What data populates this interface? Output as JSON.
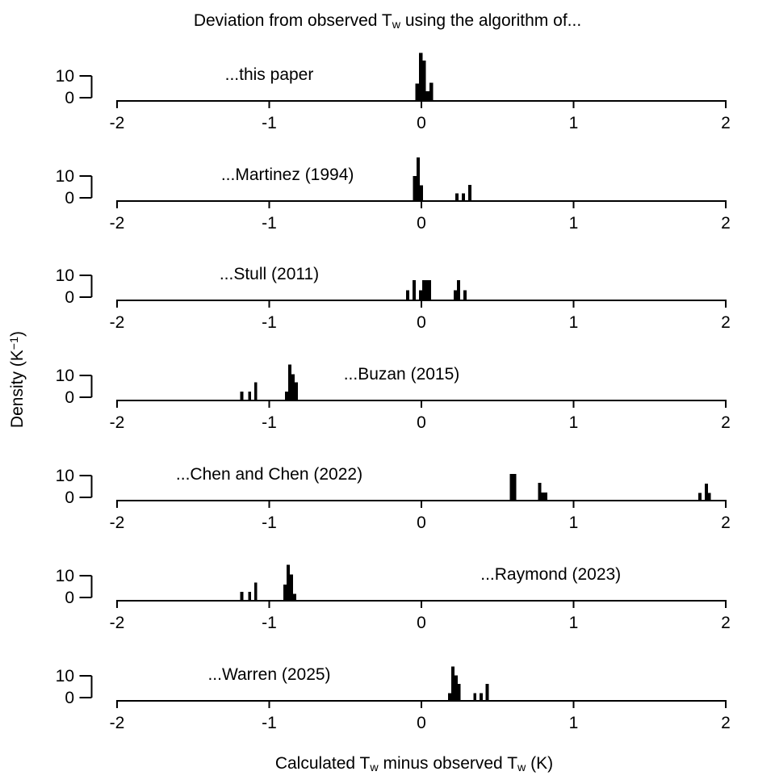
{
  "text": {
    "title_segments": [
      {
        "text": "Deviation from observed T"
      },
      {
        "text": "w",
        "sub": true
      },
      {
        "text": " using the algorithm of..."
      }
    ],
    "xlabel_segments": [
      {
        "text": "Calculated T"
      },
      {
        "text": "w",
        "sub": true
      },
      {
        "text": " minus observed T"
      },
      {
        "text": "w",
        "sub": true
      },
      {
        "text": " (K)"
      }
    ],
    "ylabel_segments": [
      {
        "text": "Density (K"
      },
      {
        "text": "−1",
        "sup": true
      },
      {
        "text": ")"
      }
    ]
  },
  "colors": {
    "bar_fill": "#000000",
    "axis": "#000000",
    "background": "#ffffff"
  },
  "chart_data": {
    "type": "bar",
    "subtype": "histogram-small-multiples",
    "title": "Deviation from observed Tw using the algorithm of...",
    "xlabel": "Calculated Tw minus observed Tw (K)",
    "ylabel": "Density (K-1)",
    "xlim": [
      -2,
      2
    ],
    "x_ticks": [
      -2,
      -1,
      0,
      1,
      2
    ],
    "x_tick_labels": [
      "-2",
      "-1",
      "0",
      "1",
      "2"
    ],
    "y_ticks": [
      0,
      10
    ],
    "y_tick_labels": [
      "0",
      "10"
    ],
    "grid": false,
    "panels": [
      {
        "label": "...this paper",
        "label_x": -1.0,
        "bars": [
          {
            "x": -0.039,
            "w": 0.023,
            "h": 8.0
          },
          {
            "x": -0.016,
            "w": 0.023,
            "h": 22.0
          },
          {
            "x": 0.007,
            "w": 0.023,
            "h": 18.5
          },
          {
            "x": 0.03,
            "w": 0.023,
            "h": 4.5
          },
          {
            "x": 0.053,
            "w": 0.023,
            "h": 8.3
          }
        ]
      },
      {
        "label": "...Martinez (1994)",
        "label_x": -0.88,
        "bars": [
          {
            "x": -0.055,
            "w": 0.023,
            "h": 11.4
          },
          {
            "x": -0.032,
            "w": 0.021,
            "h": 20.0
          },
          {
            "x": -0.011,
            "w": 0.022,
            "h": 7.2
          },
          {
            "x": 0.222,
            "w": 0.021,
            "h": 3.5
          },
          {
            "x": 0.265,
            "w": 0.021,
            "h": 3.5
          },
          {
            "x": 0.307,
            "w": 0.021,
            "h": 7.4
          }
        ]
      },
      {
        "label": "...Stull (2011)",
        "label_x": -1.0,
        "bars": [
          {
            "x": -0.1,
            "w": 0.021,
            "h": 4.7
          },
          {
            "x": -0.058,
            "w": 0.021,
            "h": 9.3
          },
          {
            "x": -0.016,
            "w": 0.02,
            "h": 4.7
          },
          {
            "x": 0.004,
            "w": 0.02,
            "h": 9.3
          },
          {
            "x": 0.024,
            "w": 0.02,
            "h": 9.3
          },
          {
            "x": 0.044,
            "w": 0.02,
            "h": 9.3
          },
          {
            "x": 0.212,
            "w": 0.021,
            "h": 4.7
          },
          {
            "x": 0.233,
            "w": 0.021,
            "h": 9.3
          },
          {
            "x": 0.275,
            "w": 0.021,
            "h": 4.7
          }
        ]
      },
      {
        "label": "...Buzan (2015)",
        "label_x": -0.13,
        "bars": [
          {
            "x": -1.19,
            "w": 0.02,
            "h": 4.0
          },
          {
            "x": -1.139,
            "w": 0.02,
            "h": 4.0
          },
          {
            "x": -1.099,
            "w": 0.02,
            "h": 8.4
          },
          {
            "x": -0.896,
            "w": 0.021,
            "h": 4.0
          },
          {
            "x": -0.875,
            "w": 0.021,
            "h": 16.4
          },
          {
            "x": -0.854,
            "w": 0.021,
            "h": 12.0
          },
          {
            "x": -0.833,
            "w": 0.021,
            "h": 8.4
          }
        ]
      },
      {
        "label": "...Chen and Chen (2022)",
        "label_x": -1.0,
        "bars": [
          {
            "x": 0.58,
            "w": 0.022,
            "h": 12.3
          },
          {
            "x": 0.602,
            "w": 0.022,
            "h": 12.3
          },
          {
            "x": 0.766,
            "w": 0.021,
            "h": 8.2
          },
          {
            "x": 0.787,
            "w": 0.021,
            "h": 3.7
          },
          {
            "x": 0.808,
            "w": 0.02,
            "h": 3.7
          },
          {
            "x": 1.82,
            "w": 0.021,
            "h": 3.5
          },
          {
            "x": 1.862,
            "w": 0.021,
            "h": 7.8
          },
          {
            "x": 1.883,
            "w": 0.02,
            "h": 3.5
          }
        ]
      },
      {
        "label": "...Raymond (2023)",
        "label_x": 0.85,
        "bars": [
          {
            "x": -1.19,
            "w": 0.02,
            "h": 4.0
          },
          {
            "x": -1.139,
            "w": 0.02,
            "h": 4.0
          },
          {
            "x": -1.099,
            "w": 0.02,
            "h": 8.4
          },
          {
            "x": -0.906,
            "w": 0.021,
            "h": 7.4
          },
          {
            "x": -0.885,
            "w": 0.021,
            "h": 16.4
          },
          {
            "x": -0.864,
            "w": 0.021,
            "h": 12.0
          },
          {
            "x": -0.843,
            "w": 0.021,
            "h": 3.2
          }
        ]
      },
      {
        "label": "...Warren (2025)",
        "label_x": -1.0,
        "bars": [
          {
            "x": 0.175,
            "w": 0.021,
            "h": 3.5
          },
          {
            "x": 0.196,
            "w": 0.021,
            "h": 15.8
          },
          {
            "x": 0.217,
            "w": 0.021,
            "h": 11.7
          },
          {
            "x": 0.238,
            "w": 0.02,
            "h": 7.8
          },
          {
            "x": 0.342,
            "w": 0.018,
            "h": 3.5
          },
          {
            "x": 0.383,
            "w": 0.019,
            "h": 3.5
          },
          {
            "x": 0.423,
            "w": 0.021,
            "h": 7.8
          }
        ]
      }
    ]
  }
}
